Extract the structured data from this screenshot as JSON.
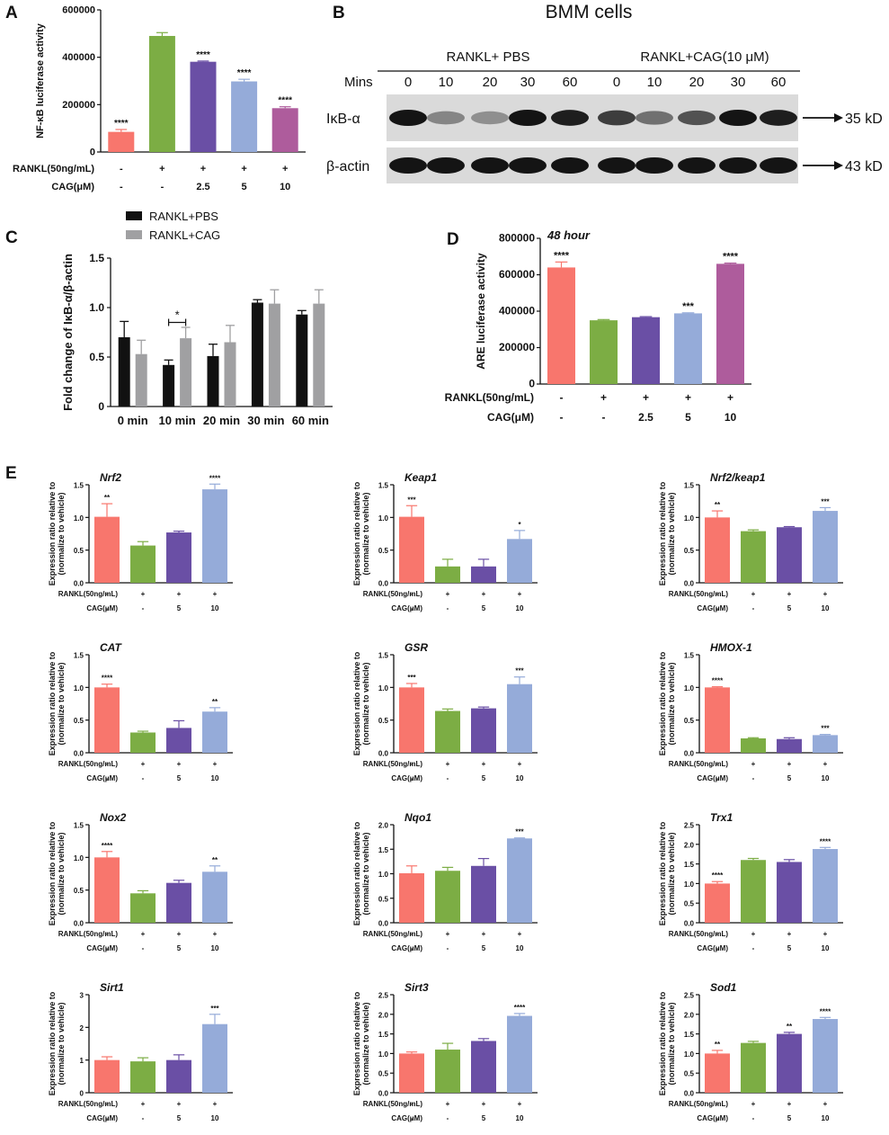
{
  "colors": {
    "pbs": "#f8766d",
    "rankl": "#7cad44",
    "cag25": "#6a4fa5",
    "cag5": "#95abd9",
    "cag10": "#ae5c9c",
    "black": "#111111",
    "grey": "#a0a0a2"
  },
  "panelA": {
    "letter": "A",
    "chart_data": {
      "type": "bar",
      "ylabel": "NF-κB luciferase activity",
      "ylim": [
        0,
        600000
      ],
      "yticks": [
        "0",
        "200000",
        "400000",
        "600000"
      ],
      "values": [
        85000,
        490000,
        381000,
        298000,
        185000
      ],
      "errors": [
        10000,
        14000,
        3000,
        9000,
        6000
      ],
      "sig": [
        "****",
        "",
        "****",
        "****",
        "****"
      ],
      "colors": [
        "pbs",
        "rankl",
        "cag25",
        "cag5",
        "cag10"
      ]
    },
    "rows": [
      {
        "label": "RANKL(50ng/mL)",
        "values": [
          "-",
          "+",
          "+",
          "+",
          "+"
        ]
      },
      {
        "label": "CAG(μM)",
        "values": [
          "-",
          "-",
          "2.5",
          "5",
          "10"
        ]
      }
    ]
  },
  "panelB": {
    "letter": "B",
    "title": "BMM cells",
    "group1": "RANKL+ PBS",
    "group2": "RANKL+CAG(10 μM)",
    "mins_label": "Mins",
    "times": [
      "0",
      "10",
      "20",
      "30",
      "60",
      "0",
      "10",
      "20",
      "30",
      "60"
    ],
    "blot1": {
      "label": "IκB-α",
      "size": "35 kD",
      "intensity": [
        1.0,
        0.45,
        0.4,
        1.0,
        0.95,
        0.8,
        0.55,
        0.7,
        1.0,
        0.95
      ]
    },
    "blot2": {
      "label": "β-actin",
      "size": "43 kD",
      "intensity": [
        1.0,
        1.0,
        1.0,
        1.0,
        1.0,
        1.0,
        1.0,
        1.0,
        1.0,
        1.0
      ]
    }
  },
  "panelC": {
    "letter": "C",
    "chart_data": {
      "type": "bar",
      "ylabel": "Fold change of IκB-α/β-actin",
      "ylim": [
        0,
        1.5
      ],
      "yticks": [
        "0",
        "0.5",
        "1.0",
        "1.5"
      ],
      "categories": [
        "0 min",
        "10 min",
        "20 min",
        "30 min",
        "60 min"
      ],
      "series": [
        {
          "name": "RANKL+PBS",
          "color": "black",
          "values": [
            0.7,
            0.42,
            0.51,
            1.05,
            0.93
          ],
          "errors": [
            0.16,
            0.05,
            0.12,
            0.03,
            0.04
          ]
        },
        {
          "name": "RANKL+CAG",
          "color": "grey",
          "values": [
            0.53,
            0.69,
            0.65,
            1.04,
            1.04
          ],
          "errors": [
            0.14,
            0.11,
            0.17,
            0.14,
            0.14
          ]
        }
      ],
      "annotation": "*"
    }
  },
  "panelD": {
    "letter": "D",
    "chart_data": {
      "type": "bar",
      "title": "48 hour",
      "ylabel": "ARE luciferase activity",
      "ylim": [
        0,
        800000
      ],
      "yticks": [
        "0",
        "200000",
        "400000",
        "600000",
        "800000"
      ],
      "values": [
        640000,
        350000,
        367000,
        388000,
        660000
      ],
      "errors": [
        30000,
        4000,
        3000,
        3000,
        4000
      ],
      "sig": [
        "****",
        "",
        "",
        "***",
        "****"
      ],
      "colors": [
        "pbs",
        "rankl",
        "cag25",
        "cag5",
        "cag10"
      ]
    },
    "rows": [
      {
        "label": "RANKL(50ng/mL)",
        "values": [
          "-",
          "+",
          "+",
          "+",
          "+"
        ]
      },
      {
        "label": "CAG(μM)",
        "values": [
          "-",
          "-",
          "2.5",
          "5",
          "10"
        ]
      }
    ]
  },
  "panelE": {
    "letter": "E",
    "ylabel1": "Expression ratio relative to",
    "ylabel2": "(normalize to vehicle)",
    "rows": [
      {
        "label": "RANKL(50ng/mL)",
        "values": [
          "-",
          "+",
          "+",
          "+"
        ]
      },
      {
        "label": "CAG(μM)",
        "values": [
          "-",
          "-",
          "5",
          "10"
        ]
      }
    ],
    "bar_colors": [
      "pbs",
      "rankl",
      "cag25",
      "cag5"
    ],
    "chart_data": [
      {
        "type": "bar",
        "title": "Nrf2",
        "ylim": [
          0,
          1.5
        ],
        "yticks": [
          "0.0",
          "0.5",
          "1.0",
          "1.5"
        ],
        "values": [
          1.01,
          0.57,
          0.77,
          1.43
        ],
        "errors": [
          0.2,
          0.06,
          0.02,
          0.08
        ],
        "sig": [
          "**",
          "",
          "",
          "****"
        ]
      },
      {
        "type": "bar",
        "title": "Keap1",
        "ylim": [
          0,
          1.5
        ],
        "yticks": [
          "0.0",
          "0.5",
          "1.0",
          "1.5"
        ],
        "values": [
          1.01,
          0.25,
          0.25,
          0.67
        ],
        "errors": [
          0.17,
          0.11,
          0.11,
          0.13
        ],
        "sig": [
          "***",
          "",
          "",
          "*"
        ]
      },
      {
        "type": "bar",
        "title": "Nrf2/keap1",
        "ylim": [
          0,
          1.5
        ],
        "yticks": [
          "0.0",
          "0.5",
          "1.0",
          "1.5"
        ],
        "values": [
          1.0,
          0.79,
          0.85,
          1.1
        ],
        "errors": [
          0.1,
          0.02,
          0.01,
          0.05
        ],
        "sig": [
          "**",
          "",
          "",
          "***"
        ]
      },
      {
        "type": "bar",
        "title": "CAT",
        "ylim": [
          0,
          1.5
        ],
        "yticks": [
          "0.0",
          "0.5",
          "1.0",
          "1.5"
        ],
        "values": [
          1.0,
          0.31,
          0.38,
          0.63
        ],
        "errors": [
          0.05,
          0.02,
          0.11,
          0.06
        ],
        "sig": [
          "****",
          "",
          "",
          "**"
        ]
      },
      {
        "type": "bar",
        "title": "GSR",
        "ylim": [
          0,
          1.5
        ],
        "yticks": [
          "0.0",
          "0.5",
          "1.0",
          "1.5"
        ],
        "values": [
          1.0,
          0.64,
          0.68,
          1.05
        ],
        "errors": [
          0.06,
          0.03,
          0.02,
          0.11
        ],
        "sig": [
          "***",
          "",
          "",
          "***"
        ]
      },
      {
        "type": "bar",
        "title": "HMOX-1",
        "ylim": [
          0,
          1.5
        ],
        "yticks": [
          "0.0",
          "0.5",
          "1.0",
          "1.5"
        ],
        "values": [
          1.0,
          0.22,
          0.21,
          0.27
        ],
        "errors": [
          0.01,
          0.01,
          0.02,
          0.01
        ],
        "sig": [
          "****",
          "",
          "",
          "***"
        ]
      },
      {
        "type": "bar",
        "title": "Nox2",
        "ylim": [
          0,
          1.5
        ],
        "yticks": [
          "0.0",
          "0.5",
          "1.0",
          "1.5"
        ],
        "values": [
          1.0,
          0.45,
          0.61,
          0.78
        ],
        "errors": [
          0.09,
          0.04,
          0.04,
          0.09
        ],
        "sig": [
          "****",
          "",
          "",
          "**"
        ]
      },
      {
        "type": "bar",
        "title": "Nqo1",
        "ylim": [
          0,
          2.0
        ],
        "yticks": [
          "0.0",
          "0.5",
          "1.0",
          "1.5",
          "2.0"
        ],
        "values": [
          1.01,
          1.06,
          1.16,
          1.72
        ],
        "errors": [
          0.15,
          0.07,
          0.15,
          0.01
        ],
        "sig": [
          "",
          "",
          "",
          "***"
        ]
      },
      {
        "type": "bar",
        "title": "Trx1",
        "ylim": [
          0,
          2.5
        ],
        "yticks": [
          "0.0",
          "0.5",
          "1.0",
          "1.5",
          "2.0",
          "2.5"
        ],
        "values": [
          1.0,
          1.6,
          1.55,
          1.88
        ],
        "errors": [
          0.05,
          0.04,
          0.06,
          0.04
        ],
        "sig": [
          "****",
          "",
          "",
          "****"
        ]
      },
      {
        "type": "bar",
        "title": "Sirt1",
        "ylim": [
          0,
          3
        ],
        "yticks": [
          "0",
          "1",
          "2",
          "3"
        ],
        "values": [
          1.0,
          0.96,
          1.0,
          2.1
        ],
        "errors": [
          0.1,
          0.11,
          0.16,
          0.3
        ],
        "sig": [
          "",
          "",
          "",
          "***"
        ]
      },
      {
        "type": "bar",
        "title": "Sirt3",
        "ylim": [
          0,
          2.5
        ],
        "yticks": [
          "0.0",
          "0.5",
          "1.0",
          "1.5",
          "2.0",
          "2.5"
        ],
        "values": [
          1.0,
          1.1,
          1.32,
          1.96
        ],
        "errors": [
          0.04,
          0.16,
          0.06,
          0.06
        ],
        "sig": [
          "",
          "",
          "",
          "****"
        ]
      },
      {
        "type": "bar",
        "title": "Sod1",
        "ylim": [
          0,
          2.5
        ],
        "yticks": [
          "0.0",
          "0.5",
          "1.0",
          "1.5",
          "2.0",
          "2.5"
        ],
        "values": [
          1.0,
          1.27,
          1.5,
          1.88
        ],
        "errors": [
          0.08,
          0.04,
          0.04,
          0.04
        ],
        "sig": [
          "**",
          "",
          "**",
          "****"
        ]
      }
    ]
  }
}
